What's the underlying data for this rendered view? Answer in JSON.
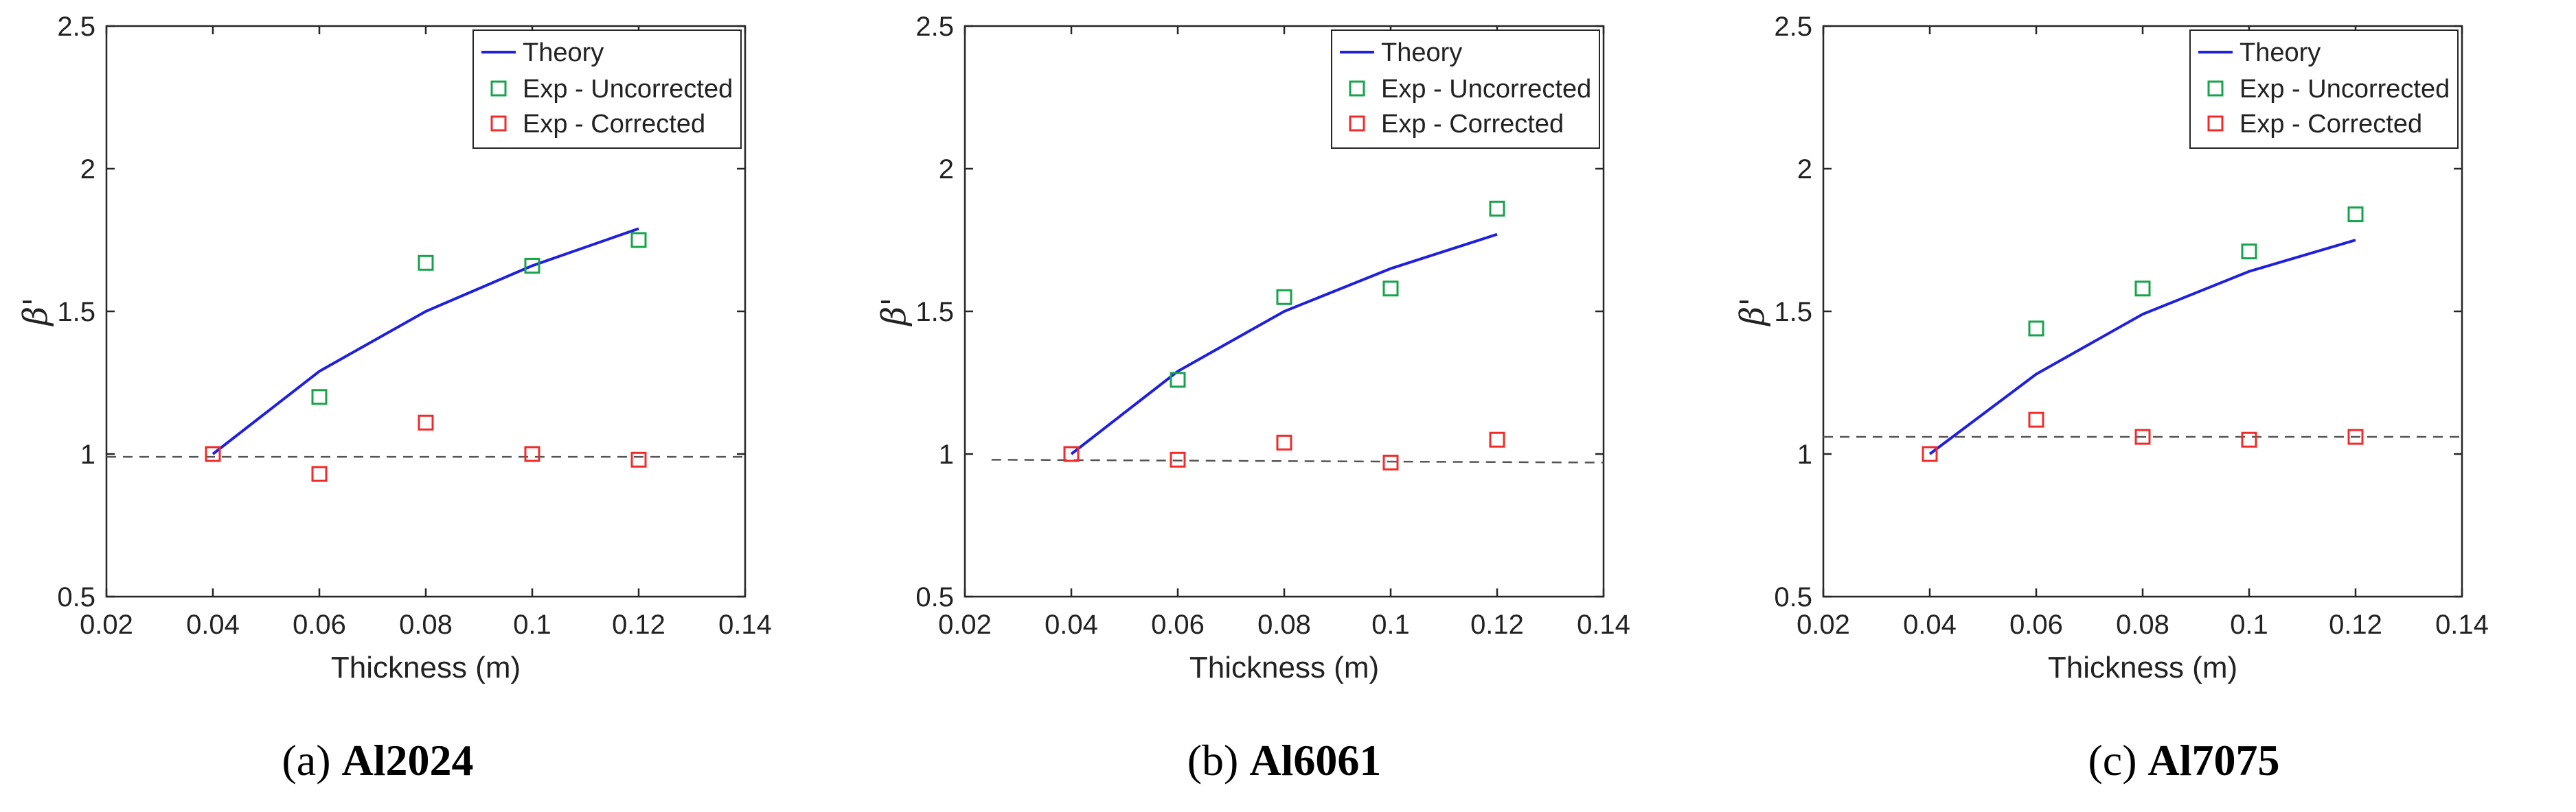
{
  "legend_labels": [
    "Theory",
    "Exp - Uncorrected",
    "Exp - Corrected"
  ],
  "colors": {
    "theory": "#1f1fe0",
    "uncorrected": "#16a34a",
    "corrected": "#ef2b2b",
    "reference": "#555555"
  },
  "chart_data": [
    {
      "type": "line",
      "panel": "(a)",
      "caption_letter": "(a)",
      "caption_name": "Al2024",
      "xlabel": "Thickness (m)",
      "ylabel": "β'",
      "xlim": [
        0.02,
        0.14
      ],
      "ylim": [
        0.5,
        2.5
      ],
      "xticks": [
        0.02,
        0.04,
        0.06,
        0.08,
        0.1,
        0.12,
        0.14
      ],
      "xticklabels": [
        "0.02",
        "0.04",
        "0.06",
        "0.08",
        "0.1",
        "0.12",
        "0.14"
      ],
      "yticks": [
        0.5,
        1,
        1.5,
        2,
        2.5
      ],
      "yticklabels": [
        "0.5",
        "1",
        "1.5",
        "2",
        "2.5"
      ],
      "legend_position": "top-right",
      "series": [
        {
          "name": "Theory",
          "kind": "line",
          "x": [
            0.04,
            0.06,
            0.08,
            0.1,
            0.12
          ],
          "y": [
            1.0,
            1.29,
            1.5,
            1.66,
            1.79
          ]
        },
        {
          "name": "Exp - Uncorrected",
          "kind": "marker",
          "x": [
            0.04,
            0.06,
            0.08,
            0.1,
            0.12
          ],
          "y": [
            1.0,
            1.2,
            1.67,
            1.66,
            1.75
          ]
        },
        {
          "name": "Exp - Corrected",
          "kind": "marker",
          "x": [
            0.04,
            0.06,
            0.08,
            0.1,
            0.12
          ],
          "y": [
            1.0,
            0.93,
            1.11,
            1.0,
            0.98
          ]
        }
      ],
      "reference_line": {
        "x": [
          0.02,
          0.14
        ],
        "y": [
          0.99,
          0.99
        ]
      }
    },
    {
      "type": "line",
      "panel": "(b)",
      "caption_letter": "(b)",
      "caption_name": "Al6061",
      "xlabel": "Thickness (m)",
      "ylabel": "β'",
      "xlim": [
        0.02,
        0.14
      ],
      "ylim": [
        0.5,
        2.5
      ],
      "xticks": [
        0.02,
        0.04,
        0.06,
        0.08,
        0.1,
        0.12,
        0.14
      ],
      "xticklabels": [
        "0.02",
        "0.04",
        "0.06",
        "0.08",
        "0.1",
        "0.12",
        "0.14"
      ],
      "yticks": [
        0.5,
        1,
        1.5,
        2,
        2.5
      ],
      "yticklabels": [
        "0.5",
        "1",
        "1.5",
        "2",
        "2.5"
      ],
      "legend_position": "top-right",
      "series": [
        {
          "name": "Theory",
          "kind": "line",
          "x": [
            0.04,
            0.06,
            0.08,
            0.1,
            0.12
          ],
          "y": [
            1.0,
            1.29,
            1.5,
            1.65,
            1.77
          ]
        },
        {
          "name": "Exp - Uncorrected",
          "kind": "marker",
          "x": [
            0.04,
            0.06,
            0.08,
            0.1,
            0.12
          ],
          "y": [
            1.0,
            1.26,
            1.55,
            1.58,
            1.86
          ]
        },
        {
          "name": "Exp - Corrected",
          "kind": "marker",
          "x": [
            0.04,
            0.06,
            0.08,
            0.1,
            0.12
          ],
          "y": [
            1.0,
            0.98,
            1.04,
            0.97,
            1.05
          ]
        }
      ],
      "reference_line": {
        "x": [
          0.025,
          0.14
        ],
        "y": [
          0.98,
          0.97
        ]
      }
    },
    {
      "type": "line",
      "panel": "(c)",
      "caption_letter": "(c)",
      "caption_name": "Al7075",
      "xlabel": "Thickness (m)",
      "ylabel": "β'",
      "xlim": [
        0.02,
        0.14
      ],
      "ylim": [
        0.5,
        2.5
      ],
      "xticks": [
        0.02,
        0.04,
        0.06,
        0.08,
        0.1,
        0.12,
        0.14
      ],
      "xticklabels": [
        "0.02",
        "0.04",
        "0.06",
        "0.08",
        "0.1",
        "0.12",
        "0.14"
      ],
      "yticks": [
        0.5,
        1,
        1.5,
        2,
        2.5
      ],
      "yticklabels": [
        "0.5",
        "1",
        "1.5",
        "2",
        "2.5"
      ],
      "legend_position": "top-right",
      "series": [
        {
          "name": "Theory",
          "kind": "line",
          "x": [
            0.04,
            0.06,
            0.08,
            0.1,
            0.12
          ],
          "y": [
            1.0,
            1.28,
            1.49,
            1.64,
            1.75
          ]
        },
        {
          "name": "Exp - Uncorrected",
          "kind": "marker",
          "x": [
            0.04,
            0.06,
            0.08,
            0.1,
            0.12
          ],
          "y": [
            1.0,
            1.44,
            1.58,
            1.71,
            1.84
          ]
        },
        {
          "name": "Exp - Corrected",
          "kind": "marker",
          "x": [
            0.04,
            0.06,
            0.08,
            0.1,
            0.12
          ],
          "y": [
            1.0,
            1.12,
            1.06,
            1.05,
            1.06
          ]
        }
      ],
      "reference_line": {
        "x": [
          0.02,
          0.14
        ],
        "y": [
          1.06,
          1.06
        ]
      }
    }
  ]
}
